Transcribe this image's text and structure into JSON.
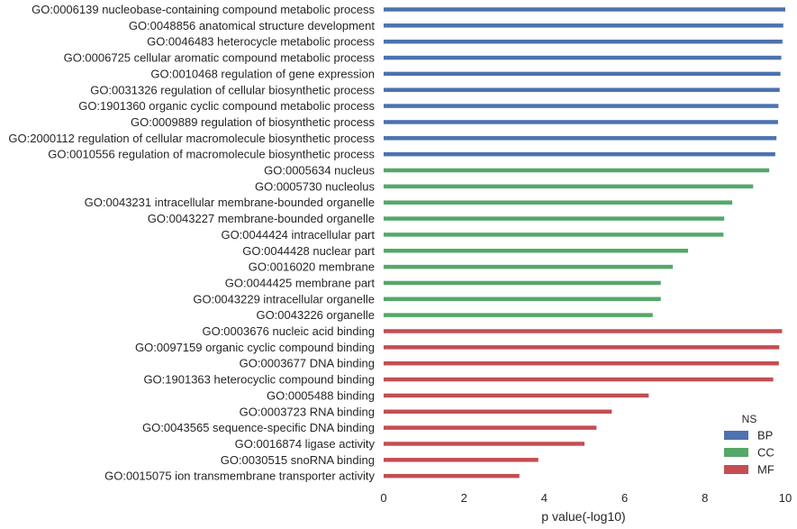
{
  "chart_data": {
    "type": "bar",
    "orientation": "horizontal",
    "categories": [
      "GO:0006139 nucleobase-containing compound metabolic process",
      "GO:0048856 anatomical structure development",
      "GO:0046483 heterocycle metabolic process",
      "GO:0006725 cellular aromatic compound metabolic process",
      "GO:0010468 regulation of gene expression",
      "GO:0031326 regulation of cellular biosynthetic process",
      "GO:1901360 organic cyclic compound metabolic process",
      "GO:0009889 regulation of biosynthetic process",
      "GO:2000112 regulation of cellular macromolecule biosynthetic process",
      "GO:0010556 regulation of macromolecule biosynthetic process",
      "GO:0005634 nucleus",
      "GO:0005730 nucleolus",
      "GO:0043231 intracellular membrane-bounded organelle",
      "GO:0043227 membrane-bounded organelle",
      "GO:0044424 intracellular part",
      "GO:0044428 nuclear part",
      "GO:0016020 membrane",
      "GO:0044425 membrane part",
      "GO:0043229 intracellular organelle",
      "GO:0043226 organelle",
      "GO:0003676 nucleic acid binding",
      "GO:0097159 organic cyclic compound binding",
      "GO:0003677 DNA binding",
      "GO:1901363 heterocyclic compound binding",
      "GO:0005488 binding",
      "GO:0003723 RNA binding",
      "GO:0043565 sequence-specific DNA binding",
      "GO:0016874 ligase activity",
      "GO:0030515 snoRNA binding",
      "GO:0015075 ion transmembrane transporter activity"
    ],
    "values": [
      10.0,
      9.95,
      9.93,
      9.9,
      9.88,
      9.86,
      9.83,
      9.82,
      9.78,
      9.75,
      9.6,
      9.2,
      8.68,
      8.48,
      8.46,
      7.58,
      7.2,
      6.9,
      6.9,
      6.7,
      9.92,
      9.85,
      9.84,
      9.7,
      6.6,
      5.68,
      5.3,
      5.0,
      3.85,
      3.38
    ],
    "groups": [
      "BP",
      "BP",
      "BP",
      "BP",
      "BP",
      "BP",
      "BP",
      "BP",
      "BP",
      "BP",
      "CC",
      "CC",
      "CC",
      "CC",
      "CC",
      "CC",
      "CC",
      "CC",
      "CC",
      "CC",
      "MF",
      "MF",
      "MF",
      "MF",
      "MF",
      "MF",
      "MF",
      "MF",
      "MF",
      "MF"
    ],
    "xlabel": "p value(-log10)",
    "ylabel": "",
    "xlim": [
      0,
      10
    ],
    "xticks": [
      "0",
      "2",
      "4",
      "6",
      "8",
      "10"
    ],
    "grid": false,
    "legend": {
      "title": "NS",
      "position": "bottom-right",
      "entries": [
        {
          "name": "BP",
          "color": "#4c72b0"
        },
        {
          "name": "CC",
          "color": "#55a868"
        },
        {
          "name": "MF",
          "color": "#c44e52"
        }
      ]
    }
  }
}
